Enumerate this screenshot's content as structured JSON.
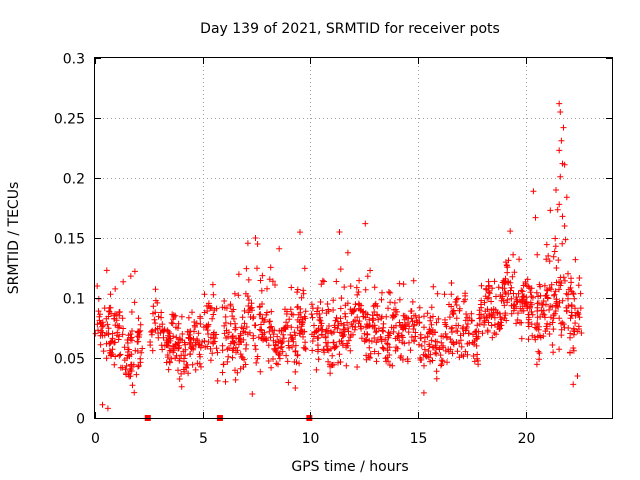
{
  "chart_data": {
    "type": "scatter",
    "title": "Day 139 of 2021, SRMTID for receiver pots",
    "xlabel": "GPS time / hours",
    "ylabel": "SRMTID / TECUs",
    "xlim": [
      0,
      24
    ],
    "ylim": [
      0,
      0.3
    ],
    "xticks": [
      0,
      5,
      10,
      15,
      20
    ],
    "xtick_labels": [
      "0",
      "5",
      "10",
      "15",
      "20"
    ],
    "yticks": [
      0,
      0.05,
      0.1,
      0.15,
      0.2,
      0.25,
      0.3
    ],
    "ytick_labels": [
      "0",
      "0.05",
      "0.1",
      "0.15",
      "0.2",
      "0.25",
      "0.3"
    ],
    "grid": true,
    "marker": "plus",
    "color": "#ff0000",
    "zero_markers_x": [
      2.45,
      5.8,
      9.95
    ],
    "segments": [
      {
        "x_start": 0.0,
        "x_end": 2.2,
        "baseline": 0.062,
        "spread": 0.022,
        "count": 140
      },
      {
        "x_start": 2.55,
        "x_end": 5.7,
        "baseline": 0.063,
        "spread": 0.02,
        "count": 200
      },
      {
        "x_start": 5.9,
        "x_end": 9.8,
        "baseline": 0.072,
        "spread": 0.025,
        "count": 260
      },
      {
        "x_start": 10.05,
        "x_end": 13.5,
        "baseline": 0.074,
        "spread": 0.024,
        "count": 230
      },
      {
        "x_start": 13.5,
        "x_end": 17.8,
        "baseline": 0.068,
        "spread": 0.02,
        "count": 260
      },
      {
        "x_start": 17.8,
        "x_end": 20.5,
        "baseline": 0.095,
        "spread": 0.022,
        "count": 180
      },
      {
        "x_start": 20.5,
        "x_end": 22.6,
        "baseline": 0.09,
        "spread": 0.03,
        "count": 150
      }
    ],
    "notable_points": [
      {
        "x": 21.55,
        "y": 0.262
      },
      {
        "x": 21.6,
        "y": 0.255
      },
      {
        "x": 21.75,
        "y": 0.242
      },
      {
        "x": 21.65,
        "y": 0.231
      },
      {
        "x": 21.55,
        "y": 0.223
      },
      {
        "x": 21.7,
        "y": 0.212
      },
      {
        "x": 21.8,
        "y": 0.211
      },
      {
        "x": 21.6,
        "y": 0.201
      },
      {
        "x": 21.4,
        "y": 0.19
      },
      {
        "x": 21.9,
        "y": 0.184
      },
      {
        "x": 21.55,
        "y": 0.178
      },
      {
        "x": 21.7,
        "y": 0.168
      },
      {
        "x": 20.35,
        "y": 0.189
      },
      {
        "x": 20.45,
        "y": 0.167
      },
      {
        "x": 21.8,
        "y": 0.16
      },
      {
        "x": 12.55,
        "y": 0.162
      },
      {
        "x": 11.35,
        "y": 0.155
      },
      {
        "x": 7.45,
        "y": 0.15
      },
      {
        "x": 7.55,
        "y": 0.145
      },
      {
        "x": 8.55,
        "y": 0.141
      },
      {
        "x": 0.55,
        "y": 0.123
      },
      {
        "x": 0.35,
        "y": 0.011
      },
      {
        "x": 0.6,
        "y": 0.008
      },
      {
        "x": 0.1,
        "y": 0.11
      },
      {
        "x": 7.3,
        "y": 0.02
      },
      {
        "x": 9.3,
        "y": 0.025
      },
      {
        "x": 22.2,
        "y": 0.028
      },
      {
        "x": 22.3,
        "y": 0.132
      },
      {
        "x": 22.1,
        "y": 0.113
      },
      {
        "x": 22.4,
        "y": 0.035
      }
    ]
  }
}
